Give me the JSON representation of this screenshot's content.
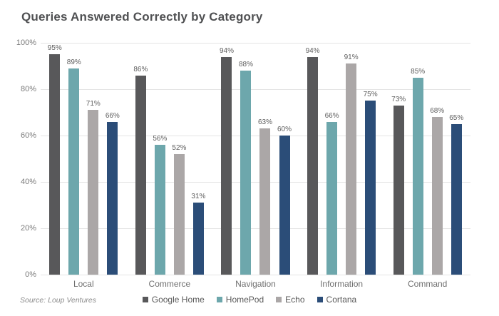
{
  "source_note": "Source: Loup Ventures",
  "chart_data": {
    "type": "bar",
    "title": "Queries Answered Correctly by Category",
    "categories": [
      "Local",
      "Commerce",
      "Navigation",
      "Information",
      "Command"
    ],
    "series": [
      {
        "name": "Google Home",
        "color": "#58585a",
        "values": [
          95,
          86,
          94,
          94,
          73
        ]
      },
      {
        "name": "HomePod",
        "color": "#6da7ac",
        "values": [
          89,
          56,
          88,
          66,
          85
        ]
      },
      {
        "name": "Echo",
        "color": "#aba7a7",
        "values": [
          71,
          52,
          63,
          91,
          68
        ]
      },
      {
        "name": "Cortana",
        "color": "#2b4d78",
        "values": [
          66,
          31,
          60,
          75,
          65
        ]
      }
    ],
    "value_label_suffix": "%",
    "xlabel": "",
    "ylabel": "",
    "ylim": [
      0,
      100
    ],
    "y_ticks": [
      0,
      20,
      40,
      60,
      80,
      100
    ],
    "y_tick_labels": [
      "0%",
      "20%",
      "40%",
      "60%",
      "80%",
      "100%"
    ],
    "grid": true,
    "legend_position": "bottom"
  }
}
